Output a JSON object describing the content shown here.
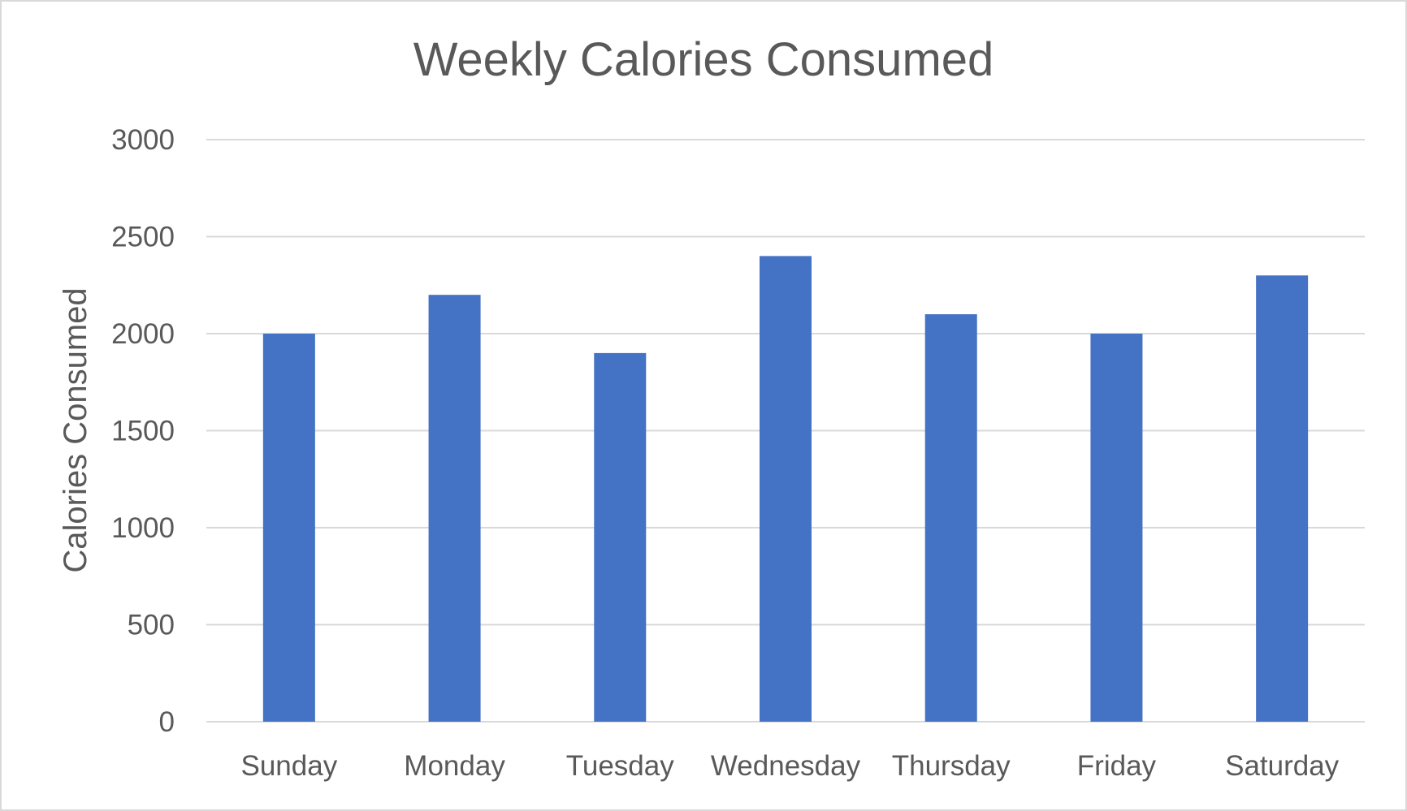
{
  "chart_data": {
    "type": "bar",
    "title": "Weekly Calories Consumed",
    "xlabel": "",
    "ylabel": "Calories Consumed",
    "categories": [
      "Sunday",
      "Monday",
      "Tuesday",
      "Wednesday",
      "Thursday",
      "Friday",
      "Saturday"
    ],
    "values": [
      2000,
      2200,
      1900,
      2400,
      2100,
      2000,
      2300
    ],
    "ylim": [
      0,
      3000
    ],
    "yticks": [
      "0",
      "500",
      "1000",
      "1500",
      "2000",
      "2500",
      "3000"
    ],
    "grid": true,
    "legend": "none",
    "colors": {
      "bar": "#4472c4",
      "grid": "#d9d9d9",
      "text": "#595959"
    }
  }
}
